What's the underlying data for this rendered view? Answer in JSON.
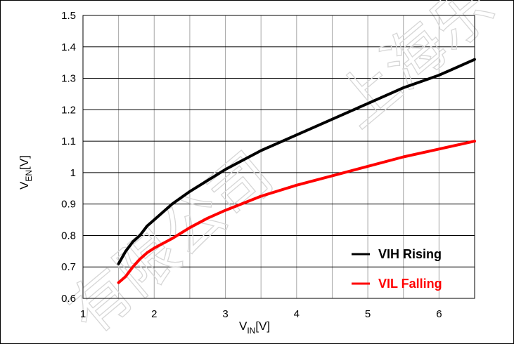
{
  "chart_data": {
    "type": "line",
    "xlabel": {
      "main": "V",
      "sub": "IN",
      "unit": "[V]"
    },
    "ylabel": {
      "main": "V",
      "sub": "EN",
      "unit": "[V]"
    },
    "xlim": [
      1,
      6.5
    ],
    "ylim": [
      0.6,
      1.5
    ],
    "xticks": [
      1,
      2,
      3,
      4,
      5,
      6
    ],
    "xtick_labels": [
      "1",
      "2",
      "3",
      "4",
      "5",
      "6"
    ],
    "yticks": [
      0.6,
      0.7,
      0.8,
      0.9,
      1.0,
      1.1,
      1.2,
      1.3,
      1.4,
      1.5
    ],
    "ytick_labels": [
      "0.6",
      "0.7",
      "0.8",
      "0.9",
      "1",
      "1.1",
      "1.2",
      "1.3",
      "1.4",
      "1.5"
    ],
    "grid": true,
    "legend_position": "bottom-right",
    "series": [
      {
        "name": "VIH Rising",
        "color": "#000000",
        "x": [
          1.5,
          1.6,
          1.7,
          1.8,
          1.9,
          2.0,
          2.25,
          2.5,
          2.75,
          3.0,
          3.5,
          4.0,
          4.5,
          5.0,
          5.5,
          6.0,
          6.5
        ],
        "y": [
          0.71,
          0.75,
          0.78,
          0.8,
          0.83,
          0.85,
          0.9,
          0.94,
          0.975,
          1.01,
          1.07,
          1.12,
          1.17,
          1.22,
          1.27,
          1.31,
          1.36
        ]
      },
      {
        "name": "VIL Falling",
        "color": "#ff0000",
        "x": [
          1.5,
          1.6,
          1.7,
          1.8,
          1.9,
          2.0,
          2.25,
          2.5,
          2.75,
          3.0,
          3.5,
          4.0,
          4.5,
          5.0,
          5.5,
          6.0,
          6.5
        ],
        "y": [
          0.65,
          0.67,
          0.7,
          0.725,
          0.745,
          0.76,
          0.79,
          0.825,
          0.855,
          0.88,
          0.925,
          0.96,
          0.99,
          1.02,
          1.05,
          1.075,
          1.1
        ]
      }
    ]
  },
  "watermark": "上海乐有限公司"
}
